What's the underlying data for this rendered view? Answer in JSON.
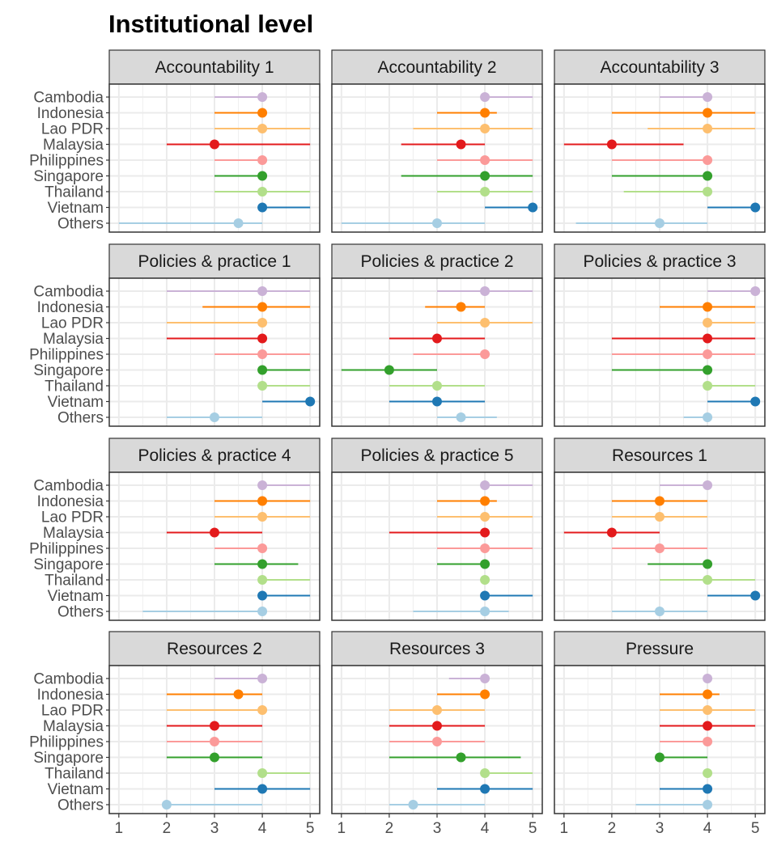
{
  "chart_data": {
    "type": "dot-range",
    "title": "Institutional level",
    "categories": [
      "Cambodia",
      "Indonesia",
      "Lao PDR",
      "Malaysia",
      "Philippines",
      "Singapore",
      "Thailand",
      "Vietnam",
      "Others"
    ],
    "colors": {
      "Cambodia": "#cab2d6",
      "Indonesia": "#ff7f00",
      "Lao PDR": "#fdbf6f",
      "Malaysia": "#e31a1c",
      "Philippines": "#fb9a99",
      "Singapore": "#33a02c",
      "Thailand": "#b2df8a",
      "Vietnam": "#1f78b4",
      "Others": "#a6cee3"
    },
    "xlim": [
      0.8,
      5.2
    ],
    "xticks": [
      "1",
      "2",
      "3",
      "4",
      "5"
    ],
    "grid": true,
    "panels": [
      {
        "name": "Accountability 1",
        "points": [
          {
            "country": "Cambodia",
            "value": 4,
            "low": 3,
            "high": 4
          },
          {
            "country": "Indonesia",
            "value": 4,
            "low": 3,
            "high": 4
          },
          {
            "country": "Lao PDR",
            "value": 4,
            "low": 3,
            "high": 5
          },
          {
            "country": "Malaysia",
            "value": 3,
            "low": 2,
            "high": 5
          },
          {
            "country": "Philippines",
            "value": 4,
            "low": 3,
            "high": 4
          },
          {
            "country": "Singapore",
            "value": 4,
            "low": 3,
            "high": 4
          },
          {
            "country": "Thailand",
            "value": 4,
            "low": 3,
            "high": 5
          },
          {
            "country": "Vietnam",
            "value": 4,
            "low": 4,
            "high": 5
          },
          {
            "country": "Others",
            "value": 3.5,
            "low": 1,
            "high": 4
          }
        ]
      },
      {
        "name": "Accountability 2",
        "points": [
          {
            "country": "Cambodia",
            "value": 4,
            "low": 4,
            "high": 5
          },
          {
            "country": "Indonesia",
            "value": 4,
            "low": 3,
            "high": 4.25
          },
          {
            "country": "Lao PDR",
            "value": 4,
            "low": 2.5,
            "high": 5
          },
          {
            "country": "Malaysia",
            "value": 3.5,
            "low": 2.25,
            "high": 4
          },
          {
            "country": "Philippines",
            "value": 4,
            "low": 3,
            "high": 5
          },
          {
            "country": "Singapore",
            "value": 4,
            "low": 2.25,
            "high": 5
          },
          {
            "country": "Thailand",
            "value": 4,
            "low": 3,
            "high": 5
          },
          {
            "country": "Vietnam",
            "value": 5,
            "low": 4,
            "high": 5
          },
          {
            "country": "Others",
            "value": 3,
            "low": 1,
            "high": 4
          }
        ]
      },
      {
        "name": "Accountability 3",
        "points": [
          {
            "country": "Cambodia",
            "value": 4,
            "low": 3,
            "high": 4
          },
          {
            "country": "Indonesia",
            "value": 4,
            "low": 2,
            "high": 5
          },
          {
            "country": "Lao PDR",
            "value": 4,
            "low": 2.75,
            "high": 5
          },
          {
            "country": "Malaysia",
            "value": 2,
            "low": 1,
            "high": 3.5
          },
          {
            "country": "Philippines",
            "value": 4,
            "low": 2,
            "high": 4
          },
          {
            "country": "Singapore",
            "value": 4,
            "low": 2,
            "high": 4
          },
          {
            "country": "Thailand",
            "value": 4,
            "low": 2.25,
            "high": 4
          },
          {
            "country": "Vietnam",
            "value": 5,
            "low": 4,
            "high": 5
          },
          {
            "country": "Others",
            "value": 3,
            "low": 1.25,
            "high": 4
          }
        ]
      },
      {
        "name": "Policies & practice 1",
        "points": [
          {
            "country": "Cambodia",
            "value": 4,
            "low": 2,
            "high": 5
          },
          {
            "country": "Indonesia",
            "value": 4,
            "low": 2.75,
            "high": 5
          },
          {
            "country": "Lao PDR",
            "value": 4,
            "low": 2,
            "high": 4
          },
          {
            "country": "Malaysia",
            "value": 4,
            "low": 2,
            "high": 4
          },
          {
            "country": "Philippines",
            "value": 4,
            "low": 3,
            "high": 5
          },
          {
            "country": "Singapore",
            "value": 4,
            "low": 4,
            "high": 5
          },
          {
            "country": "Thailand",
            "value": 4,
            "low": 4,
            "high": 5
          },
          {
            "country": "Vietnam",
            "value": 5,
            "low": 4,
            "high": 5
          },
          {
            "country": "Others",
            "value": 3,
            "low": 2,
            "high": 4
          }
        ]
      },
      {
        "name": "Policies & practice 2",
        "points": [
          {
            "country": "Cambodia",
            "value": 4,
            "low": 3,
            "high": 5
          },
          {
            "country": "Indonesia",
            "value": 3.5,
            "low": 2.75,
            "high": 4
          },
          {
            "country": "Lao PDR",
            "value": 4,
            "low": 3,
            "high": 5
          },
          {
            "country": "Malaysia",
            "value": 3,
            "low": 2,
            "high": 4
          },
          {
            "country": "Philippines",
            "value": 4,
            "low": 2.5,
            "high": 4
          },
          {
            "country": "Singapore",
            "value": 2,
            "low": 1,
            "high": 3
          },
          {
            "country": "Thailand",
            "value": 3,
            "low": 2,
            "high": 4
          },
          {
            "country": "Vietnam",
            "value": 3,
            "low": 2,
            "high": 4
          },
          {
            "country": "Others",
            "value": 3.5,
            "low": 3,
            "high": 4.25
          }
        ]
      },
      {
        "name": "Policies & practice 3",
        "points": [
          {
            "country": "Cambodia",
            "value": 5,
            "low": 4,
            "high": 5
          },
          {
            "country": "Indonesia",
            "value": 4,
            "low": 3,
            "high": 5
          },
          {
            "country": "Lao PDR",
            "value": 4,
            "low": 4,
            "high": 5
          },
          {
            "country": "Malaysia",
            "value": 4,
            "low": 2,
            "high": 5
          },
          {
            "country": "Philippines",
            "value": 4,
            "low": 2,
            "high": 5
          },
          {
            "country": "Singapore",
            "value": 4,
            "low": 2,
            "high": 4
          },
          {
            "country": "Thailand",
            "value": 4,
            "low": 4,
            "high": 5
          },
          {
            "country": "Vietnam",
            "value": 5,
            "low": 4,
            "high": 5
          },
          {
            "country": "Others",
            "value": 4,
            "low": 3.5,
            "high": 4
          }
        ]
      },
      {
        "name": "Policies & practice 4",
        "points": [
          {
            "country": "Cambodia",
            "value": 4,
            "low": 4,
            "high": 5
          },
          {
            "country": "Indonesia",
            "value": 4,
            "low": 3,
            "high": 5
          },
          {
            "country": "Lao PDR",
            "value": 4,
            "low": 3,
            "high": 5
          },
          {
            "country": "Malaysia",
            "value": 3,
            "low": 2,
            "high": 4
          },
          {
            "country": "Philippines",
            "value": 4,
            "low": 3,
            "high": 4
          },
          {
            "country": "Singapore",
            "value": 4,
            "low": 3,
            "high": 4.75
          },
          {
            "country": "Thailand",
            "value": 4,
            "low": 4,
            "high": 5
          },
          {
            "country": "Vietnam",
            "value": 4,
            "low": 4,
            "high": 5
          },
          {
            "country": "Others",
            "value": 4,
            "low": 1.5,
            "high": 4
          }
        ]
      },
      {
        "name": "Policies & practice 5",
        "points": [
          {
            "country": "Cambodia",
            "value": 4,
            "low": 4,
            "high": 5
          },
          {
            "country": "Indonesia",
            "value": 4,
            "low": 3,
            "high": 4.25
          },
          {
            "country": "Lao PDR",
            "value": 4,
            "low": 3,
            "high": 5
          },
          {
            "country": "Malaysia",
            "value": 4,
            "low": 2,
            "high": 4
          },
          {
            "country": "Philippines",
            "value": 4,
            "low": 3,
            "high": 5
          },
          {
            "country": "Singapore",
            "value": 4,
            "low": 3,
            "high": 4
          },
          {
            "country": "Thailand",
            "value": 4,
            "low": 4,
            "high": 4
          },
          {
            "country": "Vietnam",
            "value": 4,
            "low": 4,
            "high": 5
          },
          {
            "country": "Others",
            "value": 4,
            "low": 2.5,
            "high": 4.5
          }
        ]
      },
      {
        "name": "Resources 1",
        "points": [
          {
            "country": "Cambodia",
            "value": 4,
            "low": 3,
            "high": 4
          },
          {
            "country": "Indonesia",
            "value": 3,
            "low": 2,
            "high": 4
          },
          {
            "country": "Lao PDR",
            "value": 3,
            "low": 2,
            "high": 4
          },
          {
            "country": "Malaysia",
            "value": 2,
            "low": 1,
            "high": 3
          },
          {
            "country": "Philippines",
            "value": 3,
            "low": 2,
            "high": 4
          },
          {
            "country": "Singapore",
            "value": 4,
            "low": 2.75,
            "high": 4
          },
          {
            "country": "Thailand",
            "value": 4,
            "low": 3,
            "high": 5
          },
          {
            "country": "Vietnam",
            "value": 5,
            "low": 4,
            "high": 5
          },
          {
            "country": "Others",
            "value": 3,
            "low": 2,
            "high": 4
          }
        ]
      },
      {
        "name": "Resources 2",
        "points": [
          {
            "country": "Cambodia",
            "value": 4,
            "low": 3,
            "high": 4
          },
          {
            "country": "Indonesia",
            "value": 3.5,
            "low": 2,
            "high": 4
          },
          {
            "country": "Lao PDR",
            "value": 4,
            "low": 2,
            "high": 4
          },
          {
            "country": "Malaysia",
            "value": 3,
            "low": 2,
            "high": 4
          },
          {
            "country": "Philippines",
            "value": 3,
            "low": 2,
            "high": 4
          },
          {
            "country": "Singapore",
            "value": 3,
            "low": 2,
            "high": 4
          },
          {
            "country": "Thailand",
            "value": 4,
            "low": 4,
            "high": 5
          },
          {
            "country": "Vietnam",
            "value": 4,
            "low": 3,
            "high": 5
          },
          {
            "country": "Others",
            "value": 2,
            "low": 2,
            "high": 4
          }
        ]
      },
      {
        "name": "Resources 3",
        "points": [
          {
            "country": "Cambodia",
            "value": 4,
            "low": 3.25,
            "high": 4
          },
          {
            "country": "Indonesia",
            "value": 4,
            "low": 3,
            "high": 4
          },
          {
            "country": "Lao PDR",
            "value": 3,
            "low": 2,
            "high": 4
          },
          {
            "country": "Malaysia",
            "value": 3,
            "low": 2,
            "high": 4
          },
          {
            "country": "Philippines",
            "value": 3,
            "low": 2,
            "high": 4
          },
          {
            "country": "Singapore",
            "value": 3.5,
            "low": 2,
            "high": 4.75
          },
          {
            "country": "Thailand",
            "value": 4,
            "low": 4,
            "high": 5
          },
          {
            "country": "Vietnam",
            "value": 4,
            "low": 3,
            "high": 5
          },
          {
            "country": "Others",
            "value": 2.5,
            "low": 2,
            "high": 4
          }
        ]
      },
      {
        "name": "Pressure",
        "points": [
          {
            "country": "Cambodia",
            "value": 4,
            "low": 4,
            "high": 4
          },
          {
            "country": "Indonesia",
            "value": 4,
            "low": 3,
            "high": 4.25
          },
          {
            "country": "Lao PDR",
            "value": 4,
            "low": 3,
            "high": 5
          },
          {
            "country": "Malaysia",
            "value": 4,
            "low": 3,
            "high": 5
          },
          {
            "country": "Philippines",
            "value": 4,
            "low": 3,
            "high": 4
          },
          {
            "country": "Singapore",
            "value": 3,
            "low": 3,
            "high": 4
          },
          {
            "country": "Thailand",
            "value": 4,
            "low": 4,
            "high": 4
          },
          {
            "country": "Vietnam",
            "value": 4,
            "low": 3,
            "high": 4
          },
          {
            "country": "Others",
            "value": 4,
            "low": 2.5,
            "high": 4
          }
        ]
      }
    ]
  }
}
